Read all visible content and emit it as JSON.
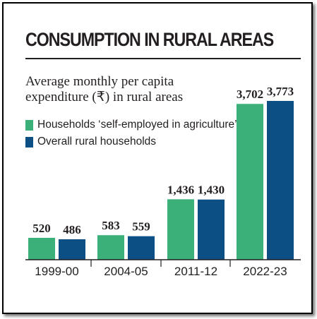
{
  "colors": {
    "primary": "#3bb078",
    "secondary": "#0c4f85",
    "text": "#231f20"
  },
  "chart_data": {
    "type": "bar",
    "title": "CONSUMPTION IN RURAL AREAS",
    "subtitle": "Average monthly per capita expenditure (₹) in rural areas",
    "subtitle_lines": [
      "Average monthly per capita",
      "expenditure (₹) in rural areas"
    ],
    "categories": [
      "1999-00",
      "2004-05",
      "2011-12",
      "2022-23"
    ],
    "series": [
      {
        "name": "Households ‘self-employed in agriculture’",
        "values": [
          520,
          583,
          1436,
          3702
        ],
        "labels": [
          "520",
          "583",
          "1,436",
          "3,702"
        ]
      },
      {
        "name": "Overall rural households",
        "values": [
          486,
          559,
          1430,
          3773
        ],
        "labels": [
          "486",
          "559",
          "1,430",
          "3,773"
        ]
      }
    ],
    "xlabel": "",
    "ylabel": "",
    "ylim": [
      0,
      3773
    ],
    "grid": false,
    "legend": "top-left"
  }
}
